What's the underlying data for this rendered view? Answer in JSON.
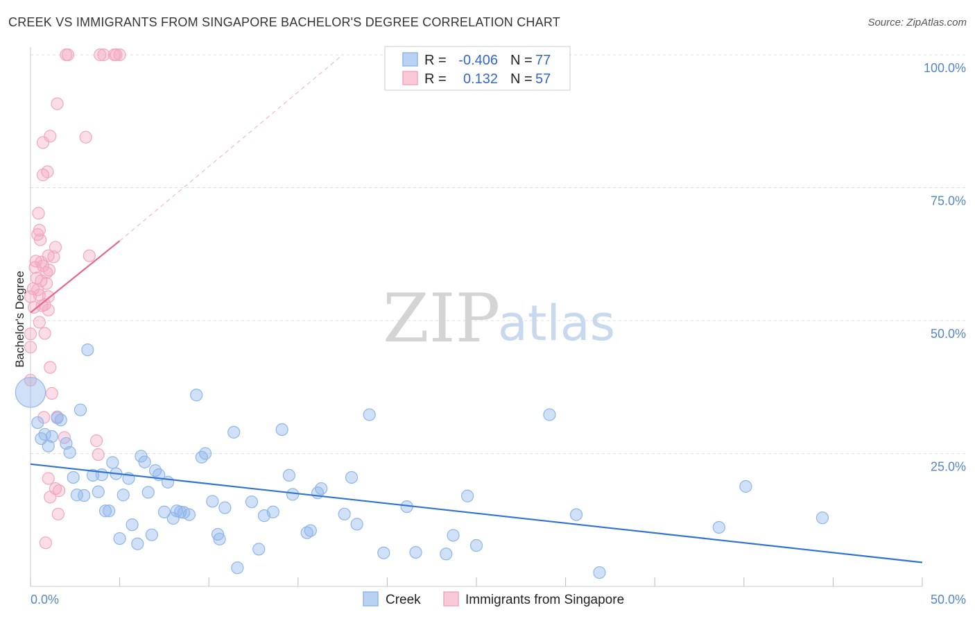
{
  "title": "CREEK VS IMMIGRANTS FROM SINGAPORE BACHELOR'S DEGREE CORRELATION CHART",
  "source": "Source: ZipAtlas.com",
  "watermark": {
    "zip": "ZIP",
    "atlas": "atlas"
  },
  "colors": {
    "creek": "#8fb6ea",
    "creek_line": "#2f72d4",
    "singapore": "#f3a6bf",
    "singapore_line": "#e5678f",
    "grid": "#dddddd",
    "axis_text": "#5585c9"
  },
  "legend": {
    "r_label": "R =",
    "n_label": "N =",
    "creek": {
      "r": "-0.406",
      "n": "77"
    },
    "singapore": {
      "r": "0.132",
      "n": "57"
    }
  },
  "chart_data": {
    "type": "scatter",
    "title": "CREEK VS IMMIGRANTS FROM SINGAPORE BACHELOR'S DEGREE CORRELATION CHART",
    "xlabel": "",
    "ylabel": "Bachelor's Degree",
    "xlim": [
      0,
      50
    ],
    "ylim": [
      0,
      100
    ],
    "x_tick_labels": [
      "0.0%",
      "50.0%"
    ],
    "y_tick_labels": [
      "100.0%",
      "75.0%",
      "50.0%",
      "25.0%"
    ],
    "y_ticks": [
      100,
      75,
      50,
      25
    ],
    "grid": true,
    "legend_position": "top-center",
    "series": [
      {
        "name": "Creek",
        "r": -0.406,
        "n": 77,
        "trend": {
          "x0": 0,
          "y0": 23.0,
          "x1": 50,
          "y1": 4.5
        },
        "points": [
          [
            0.0,
            36.5,
            30
          ],
          [
            0.4,
            30.8,
            12
          ],
          [
            0.6,
            27.8,
            12
          ],
          [
            0.8,
            28.6,
            12
          ],
          [
            1.0,
            26.4,
            12
          ],
          [
            1.2,
            28.2,
            12
          ],
          [
            1.5,
            31.7,
            12
          ],
          [
            1.7,
            31.3,
            12
          ],
          [
            2.0,
            26.9,
            12
          ],
          [
            2.2,
            25.2,
            12
          ],
          [
            2.4,
            20.5,
            12
          ],
          [
            2.6,
            17.2,
            12
          ],
          [
            2.8,
            33.2,
            12
          ],
          [
            3.0,
            17.1,
            12
          ],
          [
            3.2,
            44.5,
            12
          ],
          [
            3.5,
            20.9,
            12
          ],
          [
            3.8,
            17.8,
            12
          ],
          [
            4.0,
            21.0,
            12
          ],
          [
            4.2,
            14.2,
            12
          ],
          [
            4.4,
            14.2,
            12
          ],
          [
            4.6,
            23.3,
            12
          ],
          [
            4.8,
            21.2,
            12
          ],
          [
            5.0,
            9.0,
            12
          ],
          [
            5.2,
            17.2,
            12
          ],
          [
            5.5,
            20.3,
            12
          ],
          [
            5.7,
            11.6,
            12
          ],
          [
            6.0,
            8.0,
            12
          ],
          [
            6.2,
            24.5,
            12
          ],
          [
            6.4,
            23.4,
            12
          ],
          [
            6.6,
            17.7,
            12
          ],
          [
            6.8,
            9.7,
            12
          ],
          [
            7.0,
            21.8,
            12
          ],
          [
            7.2,
            21.0,
            12
          ],
          [
            7.5,
            14.0,
            12
          ],
          [
            7.7,
            19.6,
            12
          ],
          [
            8.0,
            12.8,
            12
          ],
          [
            8.2,
            14.2,
            12
          ],
          [
            8.4,
            14.0,
            12
          ],
          [
            8.6,
            13.9,
            12
          ],
          [
            8.9,
            13.5,
            12
          ],
          [
            9.3,
            36.0,
            12
          ],
          [
            9.6,
            24.3,
            12
          ],
          [
            9.8,
            25.0,
            12
          ],
          [
            10.2,
            16.0,
            12
          ],
          [
            10.5,
            9.8,
            12
          ],
          [
            10.6,
            8.9,
            12
          ],
          [
            10.9,
            14.8,
            12
          ],
          [
            11.4,
            29.0,
            12
          ],
          [
            11.6,
            3.5,
            12
          ],
          [
            12.4,
            15.9,
            12
          ],
          [
            12.8,
            7.0,
            12
          ],
          [
            13.1,
            13.3,
            12
          ],
          [
            13.6,
            14.0,
            12
          ],
          [
            14.1,
            29.5,
            12
          ],
          [
            14.5,
            20.9,
            12
          ],
          [
            14.7,
            17.3,
            12
          ],
          [
            15.5,
            10.1,
            12
          ],
          [
            15.7,
            10.5,
            12
          ],
          [
            16.1,
            17.6,
            12
          ],
          [
            16.3,
            18.4,
            12
          ],
          [
            17.6,
            13.6,
            12
          ],
          [
            18.0,
            20.5,
            12
          ],
          [
            18.3,
            11.7,
            12
          ],
          [
            19.0,
            32.3,
            12
          ],
          [
            19.8,
            6.3,
            12
          ],
          [
            21.1,
            15.0,
            12
          ],
          [
            21.6,
            6.4,
            12
          ],
          [
            23.3,
            6.1,
            12
          ],
          [
            23.7,
            9.6,
            12
          ],
          [
            24.5,
            17.0,
            12
          ],
          [
            25.0,
            7.7,
            12
          ],
          [
            29.1,
            32.3,
            12
          ],
          [
            30.6,
            13.5,
            12
          ],
          [
            31.9,
            2.6,
            12
          ],
          [
            38.6,
            11.1,
            12
          ],
          [
            40.1,
            18.8,
            12
          ],
          [
            44.4,
            12.9,
            12
          ]
        ]
      },
      {
        "name": "Immigrants from Singapore",
        "r": 0.132,
        "n": 57,
        "trend": {
          "x0": 0,
          "y0": 51.5,
          "x1": 5.0,
          "y1": 65.0
        },
        "trend_extension": {
          "x0": 5.0,
          "y0": 65.0,
          "x1": 17.5,
          "y1": 100.0
        },
        "points": [
          [
            0.0,
            54.5,
            12
          ],
          [
            0.0,
            47.5,
            12
          ],
          [
            0.0,
            45.0,
            12
          ],
          [
            0.0,
            38.8,
            12
          ],
          [
            0.15,
            56.0,
            12
          ],
          [
            0.2,
            52.5,
            12
          ],
          [
            0.25,
            60.0,
            12
          ],
          [
            0.3,
            61.2,
            12
          ],
          [
            0.35,
            58.0,
            12
          ],
          [
            0.4,
            55.8,
            12
          ],
          [
            0.4,
            66.2,
            12
          ],
          [
            0.45,
            70.2,
            12
          ],
          [
            0.5,
            67.0,
            12
          ],
          [
            0.5,
            54.8,
            12
          ],
          [
            0.5,
            49.7,
            12
          ],
          [
            0.55,
            65.2,
            12
          ],
          [
            0.6,
            61.0,
            12
          ],
          [
            0.6,
            57.5,
            12
          ],
          [
            0.65,
            52.8,
            12
          ],
          [
            0.7,
            60.3,
            12
          ],
          [
            0.7,
            83.5,
            12
          ],
          [
            0.7,
            77.4,
            12
          ],
          [
            0.75,
            31.8,
            12
          ],
          [
            0.8,
            53.0,
            12
          ],
          [
            0.8,
            47.6,
            12
          ],
          [
            0.85,
            8.2,
            12
          ],
          [
            0.9,
            59.0,
            12
          ],
          [
            0.9,
            57.0,
            12
          ],
          [
            0.95,
            78.0,
            12
          ],
          [
            1.0,
            62.2,
            12
          ],
          [
            1.0,
            54.5,
            12
          ],
          [
            1.0,
            52.0,
            12
          ],
          [
            1.0,
            20.3,
            12
          ],
          [
            1.05,
            59.5,
            12
          ],
          [
            1.1,
            84.7,
            12
          ],
          [
            1.1,
            41.2,
            12
          ],
          [
            1.1,
            16.8,
            12
          ],
          [
            1.2,
            36.3,
            12
          ],
          [
            1.3,
            62.0,
            12
          ],
          [
            1.4,
            63.8,
            12
          ],
          [
            1.4,
            18.4,
            12
          ],
          [
            1.5,
            90.8,
            12
          ],
          [
            1.5,
            31.9,
            12
          ],
          [
            1.55,
            13.6,
            12
          ],
          [
            1.6,
            18.0,
            12
          ],
          [
            1.9,
            28.0,
            12
          ],
          [
            2.0,
            100.0,
            12
          ],
          [
            2.1,
            100.0,
            12
          ],
          [
            3.1,
            84.5,
            12
          ],
          [
            3.3,
            62.2,
            12
          ],
          [
            3.7,
            27.4,
            12
          ],
          [
            3.8,
            24.8,
            12
          ],
          [
            3.9,
            100.0,
            12
          ],
          [
            4.1,
            100.0,
            12
          ],
          [
            4.7,
            100.0,
            12
          ],
          [
            4.8,
            100.0,
            12
          ],
          [
            5.0,
            100.0,
            12
          ]
        ]
      }
    ]
  }
}
